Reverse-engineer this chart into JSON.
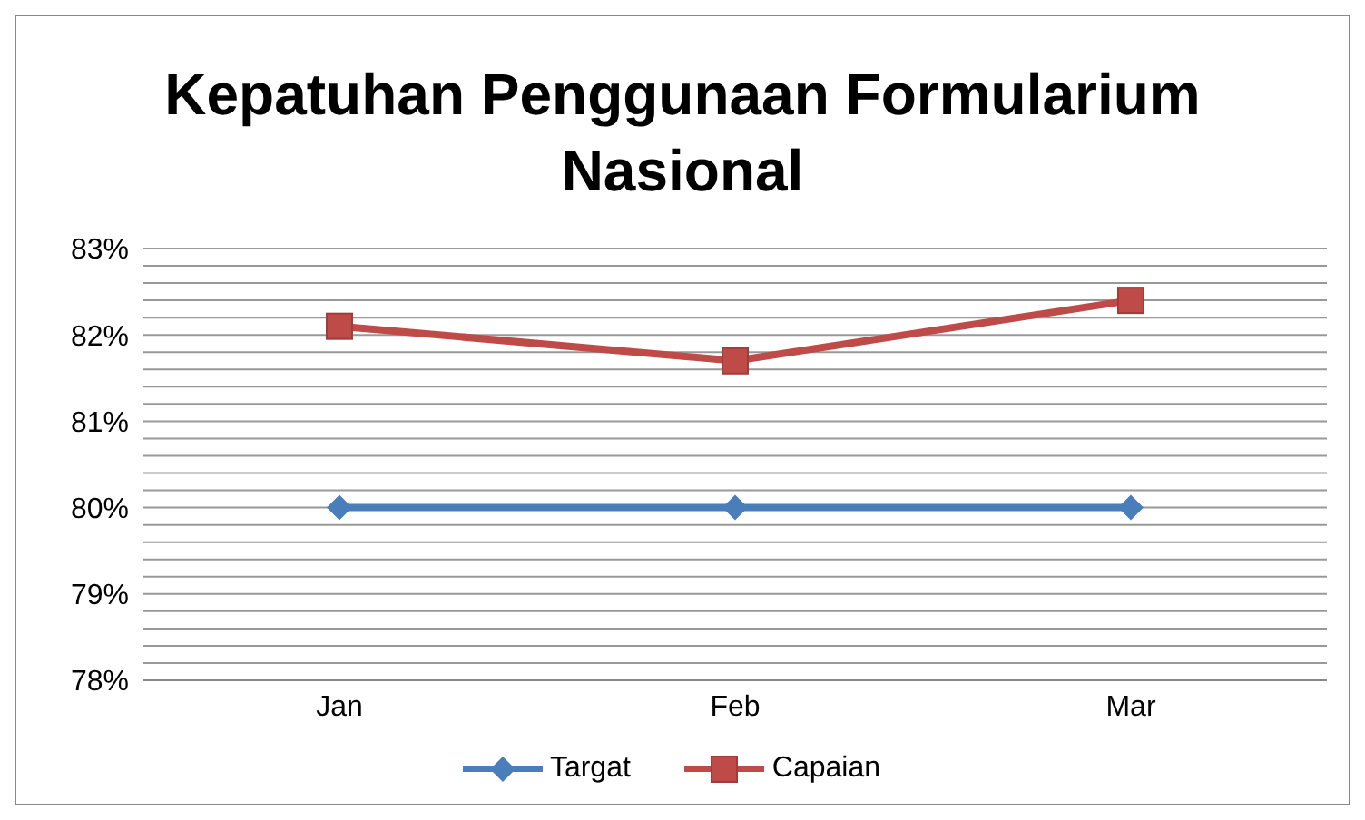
{
  "chart_data": {
    "type": "line",
    "title": "Kepatuhan Penggunaan Formularium Nasional",
    "categories": [
      "Jan",
      "Feb",
      "Mar"
    ],
    "series": [
      {
        "name": "Targat",
        "color": "#4a7ebb",
        "values": [
          80,
          80,
          80
        ],
        "marker": "diamond"
      },
      {
        "name": "Capaian",
        "color": "#be4b48",
        "values": [
          82.1,
          81.7,
          82.4
        ],
        "marker": "square"
      }
    ],
    "ylim": [
      78,
      83
    ],
    "yticks": [
      {
        "value": 78,
        "label": "78%"
      },
      {
        "value": 78.2,
        "label": null
      },
      {
        "value": 78.4,
        "label": null
      },
      {
        "value": 78.6,
        "label": null
      },
      {
        "value": 78.8,
        "label": null
      },
      {
        "value": 79,
        "label": "79%"
      },
      {
        "value": 79.2,
        "label": null
      },
      {
        "value": 79.4,
        "label": null
      },
      {
        "value": 79.6,
        "label": null
      },
      {
        "value": 79.8,
        "label": null
      },
      {
        "value": 80,
        "label": "80%"
      },
      {
        "value": 80.2,
        "label": null
      },
      {
        "value": 80.4,
        "label": null
      },
      {
        "value": 80.6,
        "label": null
      },
      {
        "value": 80.8,
        "label": null
      },
      {
        "value": 81,
        "label": "81%"
      },
      {
        "value": 81.2,
        "label": null
      },
      {
        "value": 81.4,
        "label": null
      },
      {
        "value": 81.6,
        "label": null
      },
      {
        "value": 81.8,
        "label": null
      },
      {
        "value": 82,
        "label": "82%"
      },
      {
        "value": 82.2,
        "label": null
      },
      {
        "value": 82.4,
        "label": null
      },
      {
        "value": 82.6,
        "label": null
      },
      {
        "value": 82.8,
        "label": null
      },
      {
        "value": 83,
        "label": "83%"
      }
    ],
    "grid": "y",
    "legend": "bottom",
    "line_style": "solid"
  }
}
